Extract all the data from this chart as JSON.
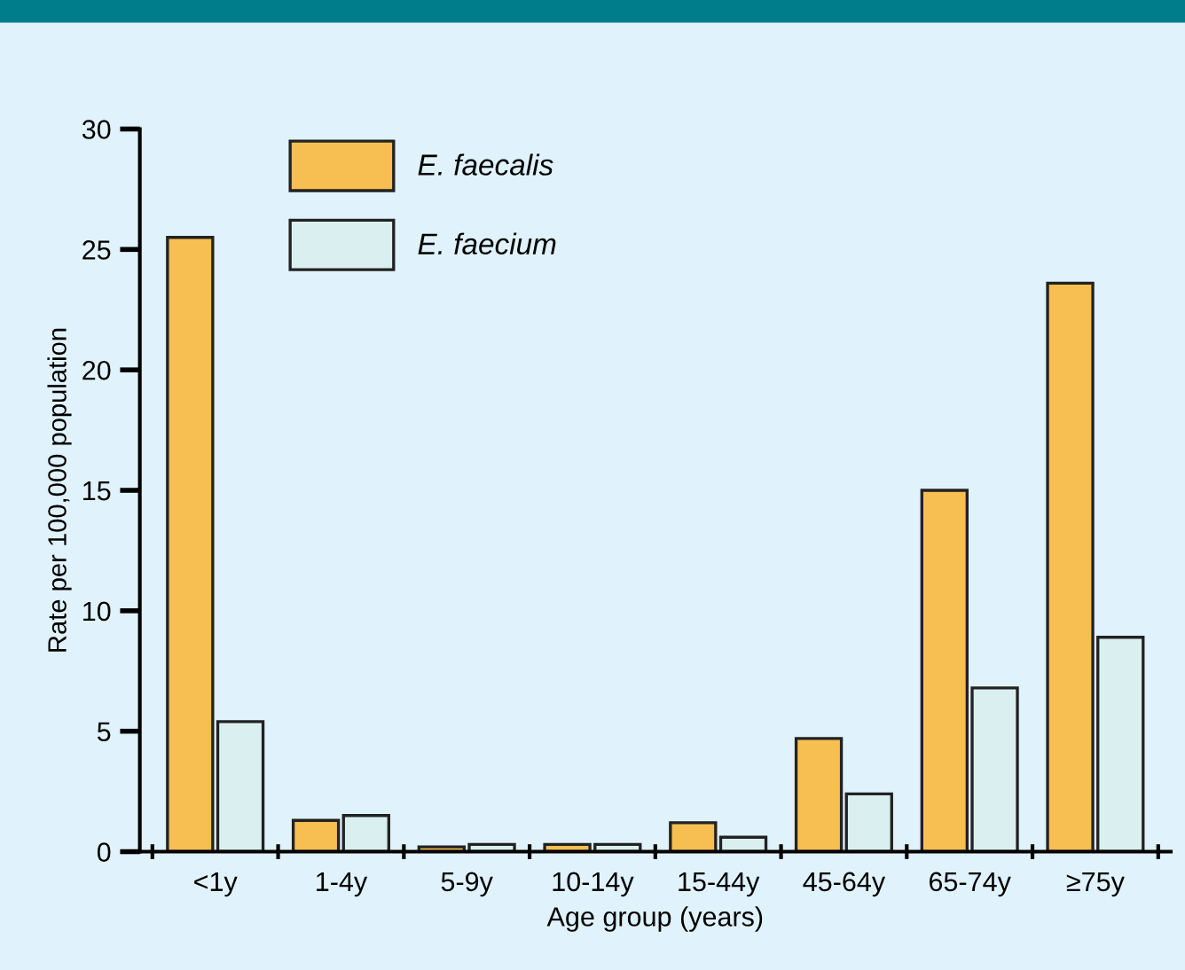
{
  "chart_data": {
    "type": "bar",
    "xlabel": "Age group (years)",
    "ylabel": "Rate per 100,000 population",
    "categories": [
      "<1y",
      "1-4y",
      "5-9y",
      "10-14y",
      "15-44y",
      "45-64y",
      "65-74y",
      "≥75y"
    ],
    "series": [
      {
        "name": "E. faecalis",
        "color": "#f7be52",
        "values": [
          25.5,
          1.3,
          0.2,
          0.3,
          1.2,
          4.7,
          15.0,
          23.6
        ]
      },
      {
        "name": "E. faecium",
        "color": "#daf0f0",
        "values": [
          5.4,
          1.5,
          0.3,
          0.3,
          0.6,
          2.4,
          6.8,
          8.9
        ]
      }
    ],
    "ylim": [
      0,
      30
    ],
    "yticks": [
      0,
      5,
      10,
      15,
      20,
      25,
      30
    ],
    "grid": false,
    "legend": "top left"
  }
}
